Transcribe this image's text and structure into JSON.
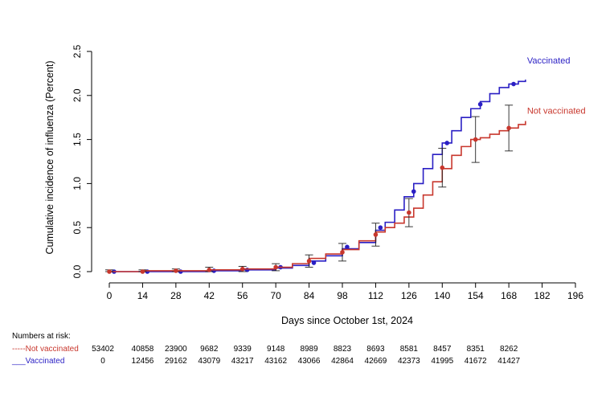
{
  "chart_data": {
    "type": "line",
    "title": "",
    "xlabel": "Days since October 1st, 2024",
    "ylabel": "Cumulative incidence of influenza (Percent)",
    "xlim": [
      0,
      196
    ],
    "ylim": [
      0,
      2.5
    ],
    "x_ticks": [
      0,
      14,
      28,
      42,
      56,
      70,
      84,
      98,
      112,
      126,
      140,
      154,
      168,
      182,
      196
    ],
    "y_ticks": [
      "0.0",
      "0.5",
      "1.0",
      "1.5",
      "2.0",
      "2.5"
    ],
    "grid": false,
    "legend": "inline labels at right end of each curve",
    "series": [
      {
        "name": "Vaccinated",
        "color": "#2a1fc4",
        "x": [
          0,
          14,
          28,
          42,
          56,
          70,
          77,
          84,
          91,
          98,
          105,
          112,
          116,
          120,
          124,
          128,
          132,
          136,
          140,
          144,
          148,
          152,
          156,
          160,
          164,
          168,
          172,
          175
        ],
        "y": [
          0.0,
          0.0,
          0.0,
          0.01,
          0.02,
          0.04,
          0.07,
          0.12,
          0.18,
          0.26,
          0.33,
          0.47,
          0.56,
          0.7,
          0.85,
          1.0,
          1.17,
          1.33,
          1.46,
          1.6,
          1.75,
          1.85,
          1.93,
          2.02,
          2.09,
          2.13,
          2.16,
          2.18
        ],
        "points": [
          {
            "x": 2,
            "y": 0.0
          },
          {
            "x": 16,
            "y": 0.0
          },
          {
            "x": 30,
            "y": 0.0
          },
          {
            "x": 44,
            "y": 0.01
          },
          {
            "x": 58,
            "y": 0.02
          },
          {
            "x": 72,
            "y": 0.05
          },
          {
            "x": 86,
            "y": 0.1
          },
          {
            "x": 100,
            "y": 0.28
          },
          {
            "x": 114,
            "y": 0.5
          },
          {
            "x": 128,
            "y": 0.91
          },
          {
            "x": 142,
            "y": 1.46
          },
          {
            "x": 156,
            "y": 1.9
          },
          {
            "x": 170,
            "y": 2.13
          }
        ]
      },
      {
        "name": "Not vaccinated",
        "color": "#c8372d",
        "x": [
          0,
          14,
          28,
          42,
          56,
          70,
          77,
          84,
          91,
          98,
          105,
          112,
          116,
          120,
          124,
          128,
          132,
          136,
          140,
          144,
          148,
          152,
          156,
          160,
          164,
          168,
          172,
          175
        ],
        "y": [
          0.0,
          0.01,
          0.01,
          0.02,
          0.03,
          0.05,
          0.09,
          0.15,
          0.2,
          0.25,
          0.35,
          0.45,
          0.5,
          0.55,
          0.62,
          0.72,
          0.87,
          1.02,
          1.17,
          1.32,
          1.42,
          1.5,
          1.52,
          1.56,
          1.6,
          1.63,
          1.67,
          1.71
        ],
        "points": [
          {
            "x": 0,
            "y": 0.0,
            "err": 0.02
          },
          {
            "x": 14,
            "y": 0.0,
            "err": 0.02
          },
          {
            "x": 28,
            "y": 0.01,
            "err": 0.02
          },
          {
            "x": 42,
            "y": 0.02,
            "err": 0.03
          },
          {
            "x": 56,
            "y": 0.03,
            "err": 0.03
          },
          {
            "x": 70,
            "y": 0.05,
            "err": 0.04
          },
          {
            "x": 84,
            "y": 0.12,
            "err": 0.07
          },
          {
            "x": 98,
            "y": 0.22,
            "err": 0.1
          },
          {
            "x": 112,
            "y": 0.42,
            "err": 0.13
          },
          {
            "x": 126,
            "y": 0.67,
            "err": 0.16
          },
          {
            "x": 140,
            "y": 1.18,
            "err": 0.22
          },
          {
            "x": 154,
            "y": 1.5,
            "err": 0.26
          },
          {
            "x": 168,
            "y": 1.63,
            "err": 0.26
          }
        ]
      }
    ],
    "annotations": [
      "Vaccinated",
      "Not vaccinated"
    ]
  },
  "risk_table": {
    "header": "Numbers at risk:",
    "rows": [
      {
        "label": "Not vaccinated",
        "line": "-----",
        "color": "#c8372d",
        "values": [
          "53402",
          "40858",
          "23900",
          "9682",
          "9339",
          "9148",
          "8989",
          "8823",
          "8693",
          "8581",
          "8457",
          "8351",
          "8262"
        ]
      },
      {
        "label": "Vaccinated",
        "line": "___",
        "color": "#2a1fc4",
        "values": [
          "0",
          "12456",
          "29162",
          "43079",
          "43217",
          "43162",
          "43066",
          "42864",
          "42669",
          "42373",
          "41995",
          "41672",
          "41427"
        ]
      }
    ]
  }
}
